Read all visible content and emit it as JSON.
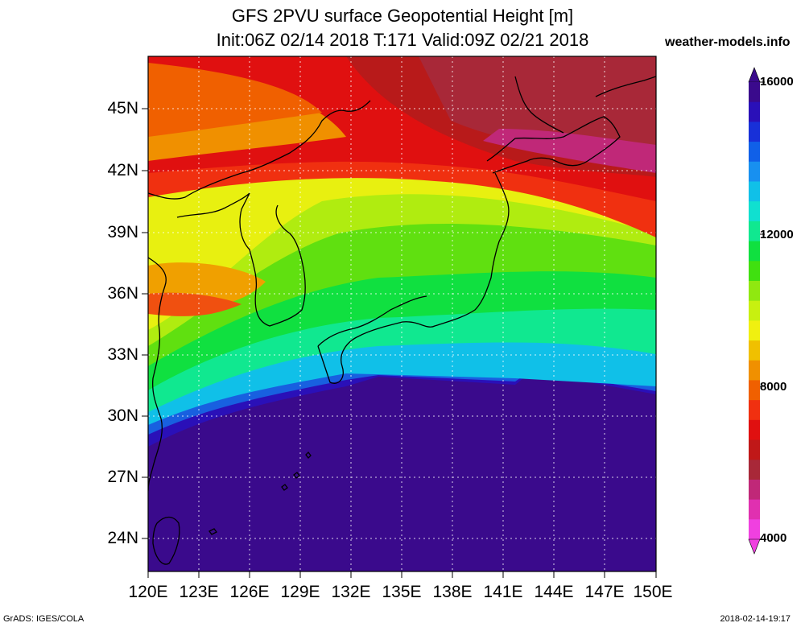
{
  "title": {
    "line1": "GFS 2PVU surface Geopotential Height [m]",
    "line2": "Init:06Z 02/14 2018 T:171 Valid:09Z 02/21 2018"
  },
  "site": "weather-models.info",
  "lat_labels": [
    "45N",
    "42N",
    "39N",
    "36N",
    "33N",
    "30N",
    "27N",
    "24N"
  ],
  "lon_labels": [
    "120E",
    "123E",
    "126E",
    "129E",
    "132E",
    "135E",
    "138E",
    "141E",
    "144E",
    "147E",
    "150E"
  ],
  "colorbar": {
    "labels": [
      "16000",
      "12000",
      "8000",
      "4000"
    ],
    "colors": [
      "#3a0a8c",
      "#2a10b8",
      "#1830d8",
      "#1060e8",
      "#1890f0",
      "#10c0e8",
      "#10e0d0",
      "#10e890",
      "#10e040",
      "#40e010",
      "#90e810",
      "#c8f010",
      "#f0f010",
      "#f0c000",
      "#f09000",
      "#f06000",
      "#f03010",
      "#e01010",
      "#c01818",
      "#a82838",
      "#c02878",
      "#e030b0",
      "#f040e0"
    ]
  },
  "footer": {
    "left": "GrADS: IGES/COLA",
    "right": "2018-02-14-19:17"
  }
}
